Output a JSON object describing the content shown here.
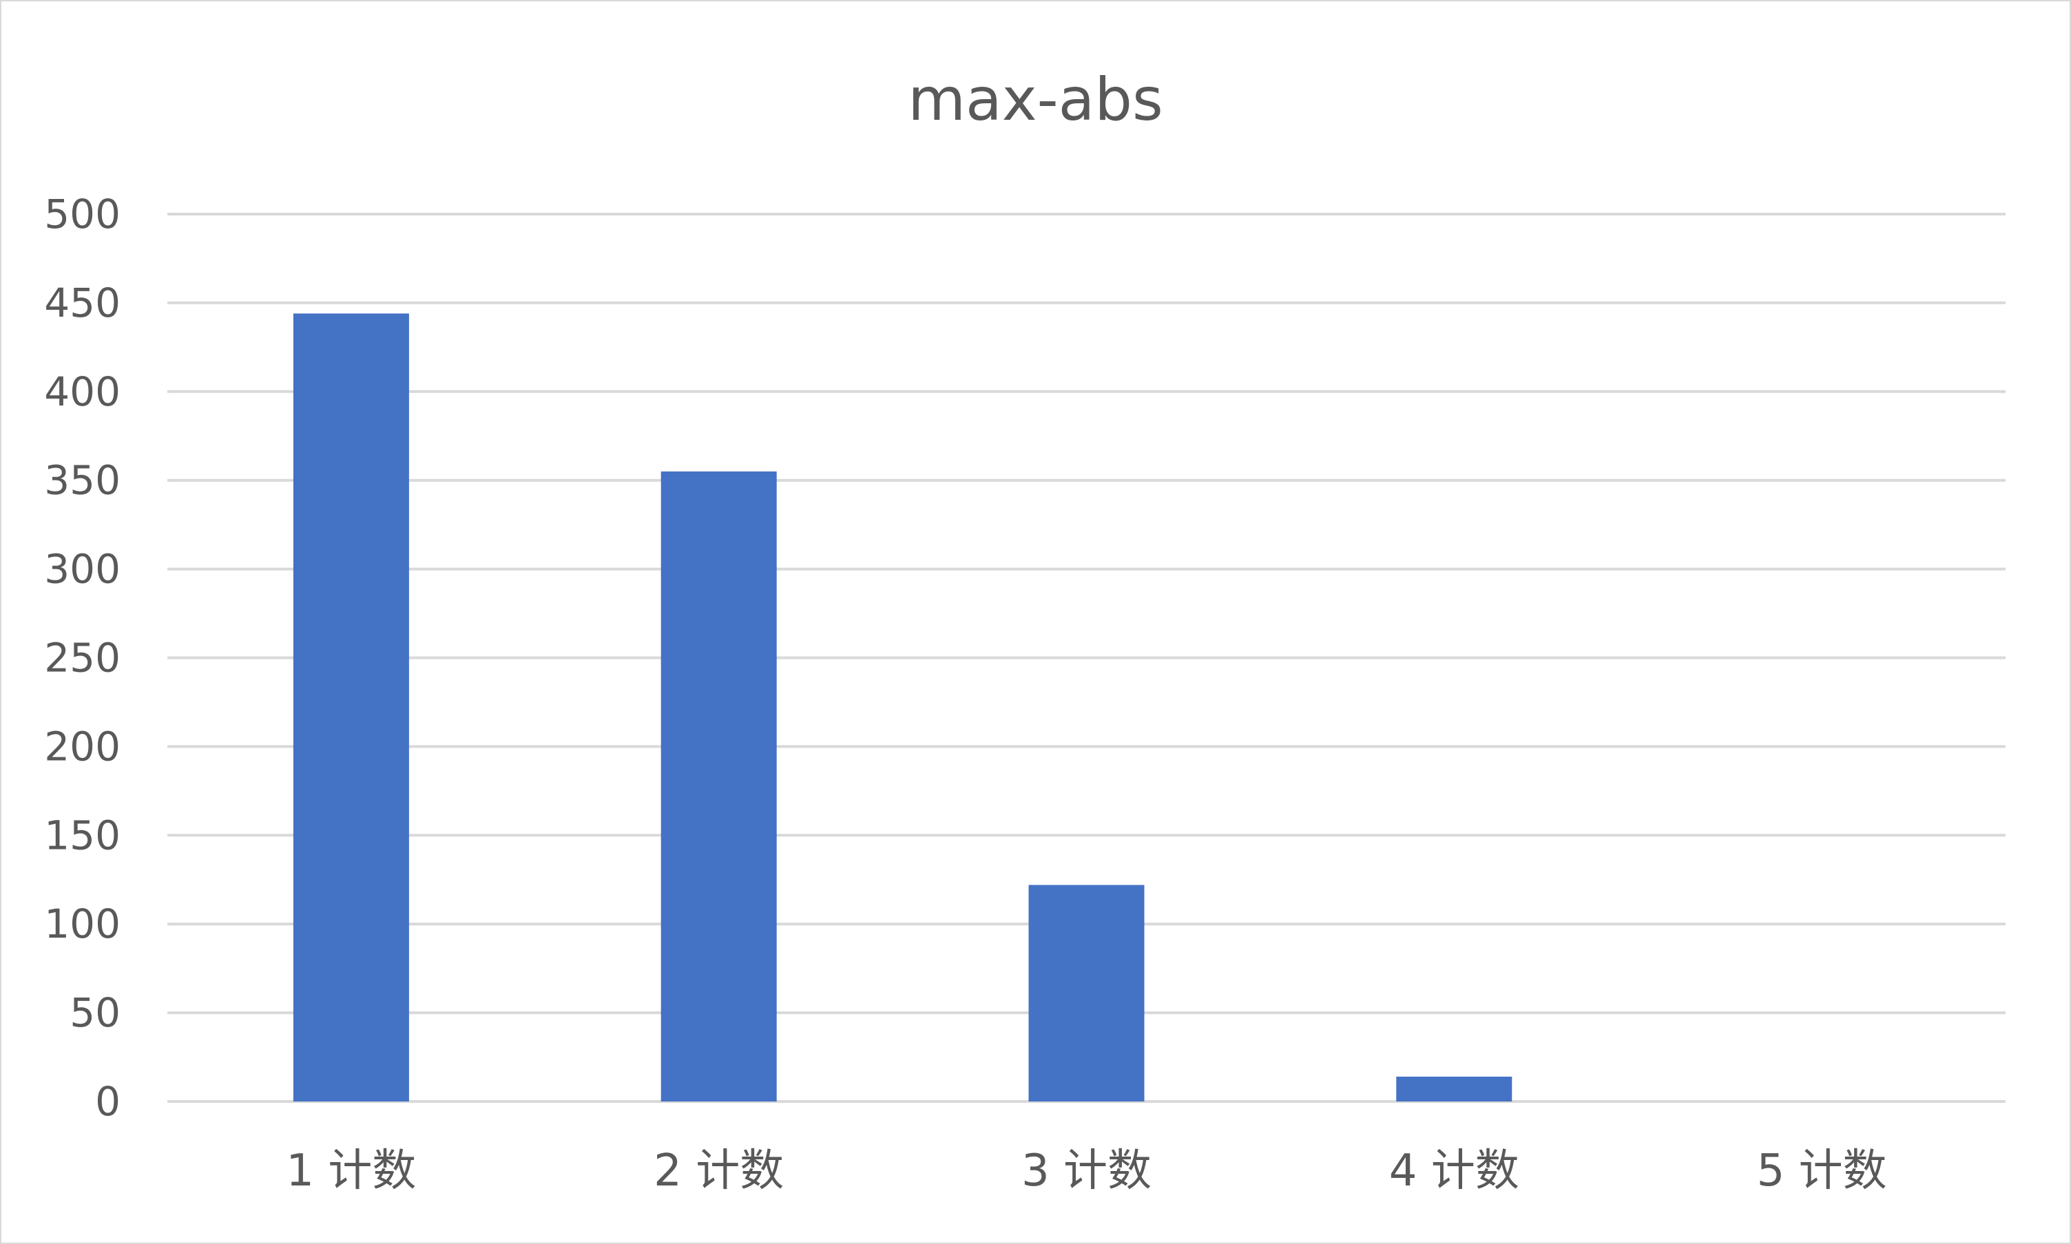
{
  "chart_data": {
    "type": "bar",
    "title": "max-abs",
    "xlabel": "",
    "ylabel": "",
    "categories": [
      "1 计数",
      "2 计数",
      "3 计数",
      "4 计数",
      "5 计数"
    ],
    "values": [
      444,
      355,
      122,
      14,
      0
    ],
    "ylim": [
      0,
      500
    ],
    "yticks": [
      "0",
      "50",
      "100",
      "150",
      "200",
      "250",
      "300",
      "350",
      "400",
      "450",
      "500"
    ],
    "grid": true,
    "legend": "none",
    "colors": {
      "bar": "#4472C4",
      "grid": "#d9d9d9",
      "text": "#595959"
    }
  }
}
